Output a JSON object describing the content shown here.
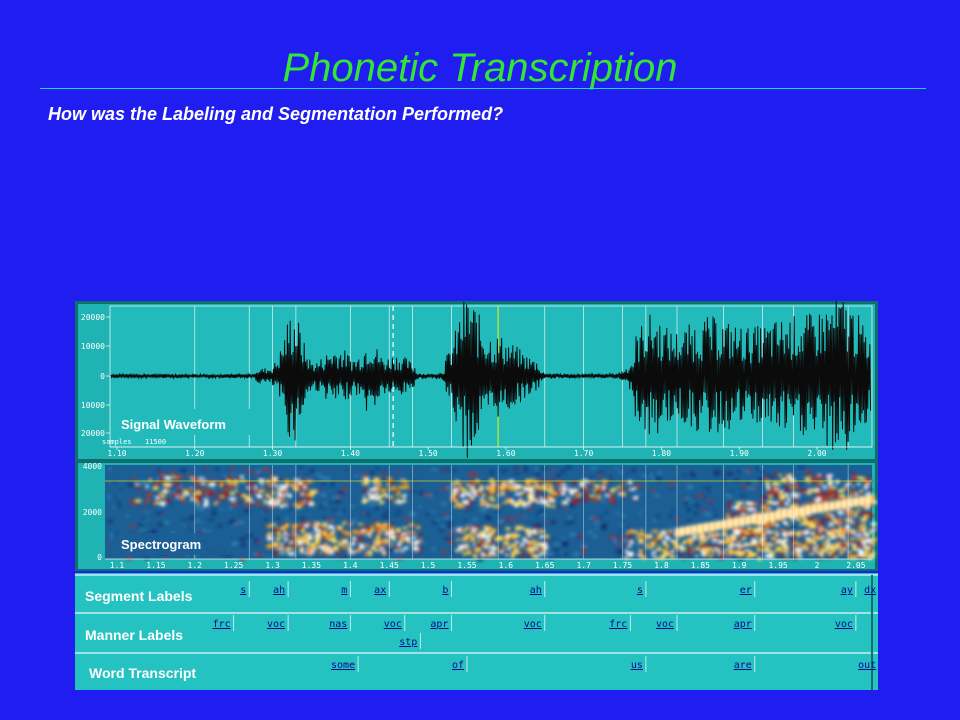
{
  "slide": {
    "title": "Phonetic Transcription",
    "subtitle": "How was the Labeling and Segmentation Performed?"
  },
  "colors": {
    "background": "#1f1df0",
    "title": "#33e633",
    "panel": "#1fb3b3",
    "label_panel": "#25c2c2"
  },
  "waveform": {
    "caption": "Signal Waveform",
    "y_ticks": [
      "20000",
      "10000",
      "0",
      "10000",
      "20000"
    ],
    "samples_label": "samples",
    "samples_value": "11500",
    "time_ticks": [
      "1.10",
      "1.20",
      "1.30",
      "1.40",
      "1.50",
      "1.60",
      "1.70",
      "1.80",
      "1.90",
      "2.00"
    ]
  },
  "spectrogram": {
    "caption": "Spectrogram",
    "y_ticks": [
      "4000",
      "2000",
      "0"
    ],
    "time_ticks": [
      "1.1",
      "1.15",
      "1.2",
      "1.25",
      "1.3",
      "1.35",
      "1.4",
      "1.45",
      "1.5",
      "1.55",
      "1.6",
      "1.65",
      "1.7",
      "1.75",
      "1.8",
      "1.85",
      "1.9",
      "1.95",
      "2",
      "2.05"
    ]
  },
  "tiers": {
    "segment": {
      "title": "Segment Labels",
      "labels": [
        {
          "text": "s",
          "t": 1.27
        },
        {
          "text": "ah",
          "t": 1.32
        },
        {
          "text": "m",
          "t": 1.4
        },
        {
          "text": "ax",
          "t": 1.45
        },
        {
          "text": "b",
          "t": 1.53
        },
        {
          "text": "ah",
          "t": 1.65
        },
        {
          "text": "s",
          "t": 1.78
        },
        {
          "text": "er",
          "t": 1.92
        },
        {
          "text": "ay",
          "t": 2.05
        },
        {
          "text": "dx",
          "t": 2.08
        }
      ]
    },
    "manner": {
      "title": "Manner Labels",
      "labels": [
        {
          "text": "frc",
          "t": 1.25
        },
        {
          "text": "voc",
          "t": 1.32
        },
        {
          "text": "nas",
          "t": 1.4
        },
        {
          "text": "voc",
          "t": 1.47
        },
        {
          "text": "apr",
          "t": 1.53
        },
        {
          "text": "voc",
          "t": 1.65
        },
        {
          "text": "frc",
          "t": 1.76
        },
        {
          "text": "voc",
          "t": 1.82
        },
        {
          "text": "apr",
          "t": 1.92
        },
        {
          "text": "voc",
          "t": 2.05
        }
      ],
      "extra": {
        "text": "stp",
        "t": 1.49
      }
    },
    "word": {
      "title": "Word Transcript",
      "labels": [
        {
          "text": "some",
          "t": 1.41
        },
        {
          "text": "of",
          "t": 1.55
        },
        {
          "text": "us",
          "t": 1.78
        },
        {
          "text": "are",
          "t": 1.92
        },
        {
          "text": "out",
          "t": 2.08
        }
      ]
    }
  }
}
